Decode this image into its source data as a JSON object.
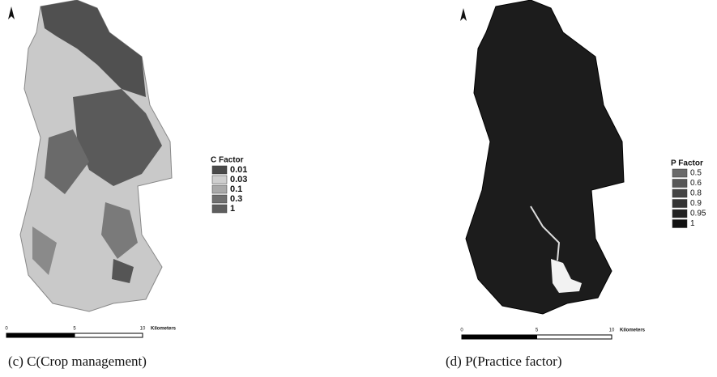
{
  "panels": [
    {
      "legend": {
        "title": "C Factor",
        "items": [
          {
            "label": "0.01",
            "color": "#4a4a4a"
          },
          {
            "label": "0.03",
            "color": "#cfcfcf"
          },
          {
            "label": "0.1",
            "color": "#a9a9a9"
          },
          {
            "label": "0.3",
            "color": "#707070"
          },
          {
            "label": "1",
            "color": "#5e5e5e"
          }
        ]
      },
      "scale": {
        "labels": [
          "0",
          "5",
          "10"
        ],
        "unit": "Kilometers"
      },
      "caption": "(c) C(Crop management)"
    },
    {
      "legend": {
        "title": "P Factor",
        "items": [
          {
            "label": "0.5",
            "color": "#6a6a6a"
          },
          {
            "label": "0.6",
            "color": "#575757"
          },
          {
            "label": "0.8",
            "color": "#444444"
          },
          {
            "label": "0.9",
            "color": "#333333"
          },
          {
            "label": "0.95",
            "color": "#222222"
          },
          {
            "label": "1",
            "color": "#111111"
          }
        ]
      },
      "scale": {
        "labels": [
          "0",
          "5",
          "10"
        ],
        "unit": "Kilometers"
      },
      "caption": "(d) P(Practice factor)"
    }
  ]
}
